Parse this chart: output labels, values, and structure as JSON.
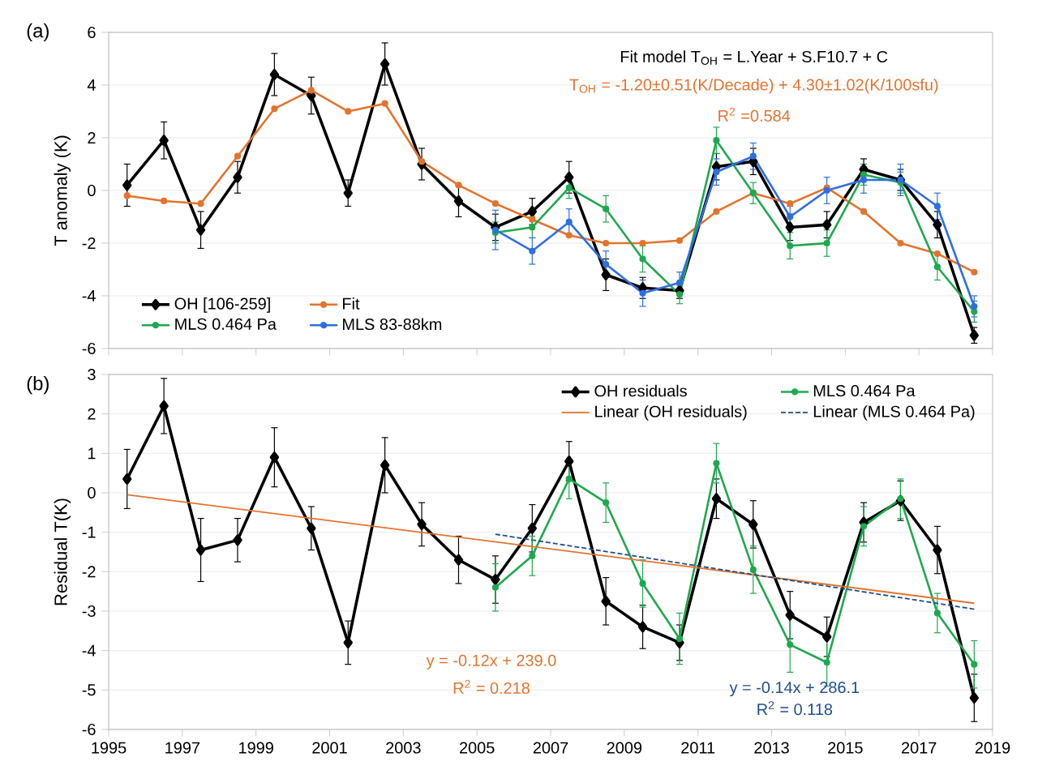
{
  "chart_data": [
    {
      "type": "line",
      "ylabel": "T anomaly (K)",
      "xlim": [
        1995,
        2019
      ],
      "xticks": [
        1995,
        1997,
        1999,
        2001,
        2003,
        2005,
        2007,
        2009,
        2011,
        2013,
        2015,
        2017,
        2019
      ],
      "ylim": [
        -6,
        6
      ],
      "yticks": [
        -6,
        -4,
        -2,
        0,
        2,
        4,
        6
      ],
      "tick_labels": "y",
      "grid": "y",
      "legend": "bottom left",
      "annotations": [
        "(a)",
        "Fit model   T$_{OH}$ = L.Year + S.F10.7 + C",
        "T$_{OH}$ = -1.20±0.51(K/Decade) + 4.30±1.02(K/100sfu)",
        "R$^{2}$ =0.584"
      ],
      "series": [
        {
          "name": "OH [106-259]",
          "color": "#000000",
          "marker": "diamond",
          "x": [
            1995.5,
            1996.5,
            1997.5,
            1998.5,
            1999.5,
            2000.5,
            2001.5,
            2002.5,
            2003.5,
            2004.5,
            2005.5,
            2006.5,
            2007.5,
            2008.5,
            2009.5,
            2010.5,
            2011.5,
            2012.5,
            2013.5,
            2014.5,
            2015.5,
            2016.5,
            2017.5,
            2018.5
          ],
          "values": [
            0.2,
            1.9,
            -1.5,
            0.5,
            4.4,
            3.6,
            -0.1,
            4.8,
            1.0,
            -0.4,
            -1.4,
            -0.8,
            0.5,
            -3.2,
            -3.7,
            -3.8,
            0.9,
            1.1,
            -1.4,
            -1.3,
            0.8,
            0.4,
            -1.3,
            -5.5
          ],
          "errors": [
            0.8,
            0.7,
            0.7,
            0.6,
            0.8,
            0.7,
            0.5,
            0.8,
            0.6,
            0.6,
            0.5,
            0.5,
            0.6,
            0.6,
            0.4,
            0.3,
            0.5,
            0.5,
            0.5,
            0.5,
            0.4,
            0.4,
            0.5,
            0.3
          ]
        },
        {
          "name": "Fit",
          "color": "#e2742f",
          "marker": "circle",
          "x": [
            1995.5,
            1996.5,
            1997.5,
            1998.5,
            1999.5,
            2000.5,
            2001.5,
            2002.5,
            2003.5,
            2004.5,
            2005.5,
            2006.5,
            2007.5,
            2008.5,
            2009.5,
            2010.5,
            2011.5,
            2012.5,
            2013.5,
            2014.5,
            2015.5,
            2016.5,
            2017.5,
            2018.5
          ],
          "values": [
            -0.2,
            -0.4,
            -0.5,
            1.3,
            3.1,
            3.8,
            3.0,
            3.3,
            1.1,
            0.2,
            -0.5,
            -1.1,
            -1.7,
            -2.0,
            -2.0,
            -1.9,
            -0.8,
            -0.1,
            -0.5,
            0.1,
            -0.8,
            -2.0,
            -2.4,
            -3.1
          ]
        },
        {
          "name": "MLS 0.464 Pa",
          "color": "#1fa84f",
          "marker": "circle",
          "x": [
            2005.5,
            2006.5,
            2007.5,
            2008.5,
            2009.5,
            2010.5,
            2011.5,
            2012.5,
            2013.5,
            2014.5,
            2015.5,
            2016.5,
            2017.5,
            2018.5
          ],
          "values": [
            -1.6,
            -1.4,
            0.1,
            -0.7,
            -2.6,
            -3.95,
            1.9,
            -0.1,
            -2.1,
            -2.0,
            0.6,
            0.3,
            -2.9,
            -4.6
          ],
          "errors": [
            0.4,
            0.4,
            0.4,
            0.5,
            0.5,
            0.35,
            0.5,
            0.4,
            0.5,
            0.5,
            0.4,
            0.4,
            0.5,
            0.4
          ]
        },
        {
          "name": "MLS 83-88km",
          "color": "#2f6fe0",
          "marker": "circle",
          "x": [
            2005.5,
            2006.5,
            2007.5,
            2008.5,
            2009.5,
            2010.5,
            2011.5,
            2012.5,
            2013.5,
            2014.5,
            2015.5,
            2016.5,
            2017.5,
            2018.5
          ],
          "values": [
            -1.5,
            -2.3,
            -1.2,
            -2.8,
            -3.9,
            -3.5,
            0.7,
            1.3,
            -1.0,
            0.0,
            0.4,
            0.4,
            -0.6,
            -4.4
          ],
          "errors": [
            0.75,
            0.5,
            0.5,
            0.5,
            0.5,
            0.4,
            0.5,
            0.5,
            0.4,
            0.5,
            0.5,
            0.6,
            0.5,
            0.4
          ]
        }
      ]
    },
    {
      "type": "line",
      "ylabel": "Residual T(K)",
      "xlim": [
        1995,
        2019
      ],
      "xticks": [
        1995,
        1997,
        1999,
        2001,
        2003,
        2005,
        2007,
        2009,
        2011,
        2013,
        2015,
        2017,
        2019
      ],
      "ylim": [
        -6,
        3
      ],
      "yticks": [
        -6,
        -5,
        -4,
        -3,
        -2,
        -1,
        0,
        1,
        2,
        3
      ],
      "grid": "y",
      "legend": "top right",
      "annotations": [
        "(b)",
        "y = -0.12x + 239.0",
        "R$^{2}$ = 0.218",
        "y = -0.14x + 286.1",
        "R$^{2}$ = 0.118"
      ],
      "series": [
        {
          "name": "OH residuals",
          "color": "#000000",
          "marker": "diamond",
          "x": [
            1995.5,
            1996.5,
            1997.5,
            1998.5,
            1999.5,
            2000.5,
            2001.5,
            2002.5,
            2003.5,
            2004.5,
            2005.5,
            2006.5,
            2007.5,
            2008.5,
            2009.5,
            2010.5,
            2011.5,
            2012.5,
            2013.5,
            2014.5,
            2015.5,
            2016.5,
            2017.5,
            2018.5
          ],
          "values": [
            0.35,
            2.2,
            -1.45,
            -1.2,
            0.9,
            -0.9,
            -3.8,
            0.7,
            -0.8,
            -1.7,
            -2.2,
            -0.9,
            0.8,
            -2.75,
            -3.4,
            -3.8,
            -0.15,
            -0.8,
            -3.1,
            -3.65,
            -0.75,
            -0.2,
            -1.45,
            -5.2
          ],
          "errors": [
            0.75,
            0.7,
            0.8,
            0.55,
            0.75,
            0.55,
            0.55,
            0.7,
            0.55,
            0.6,
            0.6,
            0.6,
            0.5,
            0.6,
            0.55,
            0.45,
            0.5,
            0.6,
            0.6,
            0.5,
            0.5,
            0.5,
            0.6,
            0.6
          ]
        },
        {
          "name": "MLS 0.464 Pa",
          "color": "#1fa84f",
          "marker": "circle",
          "x": [
            2005.5,
            2006.5,
            2007.5,
            2008.5,
            2009.5,
            2010.5,
            2011.5,
            2012.5,
            2013.5,
            2014.5,
            2015.5,
            2016.5,
            2017.5,
            2018.5
          ],
          "values": [
            -2.4,
            -1.6,
            0.35,
            -0.25,
            -2.3,
            -3.7,
            0.75,
            -1.95,
            -3.85,
            -4.3,
            -0.85,
            -0.15,
            -3.05,
            -4.35
          ],
          "errors": [
            0.6,
            0.5,
            0.5,
            0.5,
            0.6,
            0.65,
            0.5,
            0.6,
            0.7,
            0.6,
            0.5,
            0.5,
            0.5,
            0.6
          ]
        },
        {
          "name": "Linear (OH residuals)",
          "color": "#e2742f",
          "marker": "none",
          "x": [
            1995.5,
            2018.5
          ],
          "values": [
            -0.05,
            -2.8
          ]
        },
        {
          "name": "Linear (MLS 0.464 Pa)",
          "color": "#1f4e8c",
          "marker": "none",
          "line_style": "dashed",
          "x": [
            2005.5,
            2018.5
          ],
          "values": [
            -1.05,
            -2.95
          ]
        }
      ]
    }
  ]
}
